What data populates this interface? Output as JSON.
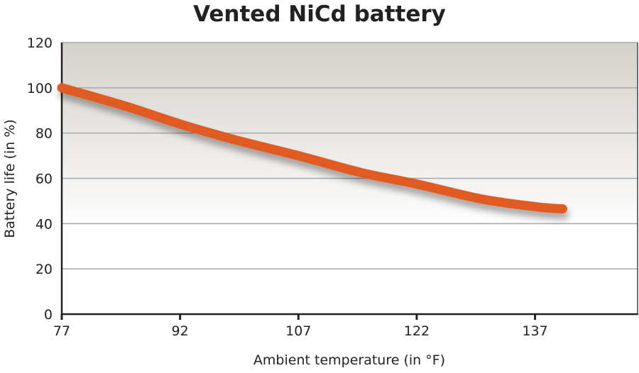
{
  "chart_data": {
    "type": "line",
    "title": "Vented NiCd battery",
    "xlabel": "Ambient temperature (in °F)",
    "ylabel": "Battery life (in %)",
    "xlim": [
      77,
      150
    ],
    "ylim": [
      0,
      120
    ],
    "xticks": [
      77,
      92,
      107,
      122,
      137
    ],
    "yticks": [
      0,
      20,
      40,
      60,
      80,
      100,
      120
    ],
    "grid": "horizontal",
    "legend": "none",
    "series": [
      {
        "color": "#e05a20",
        "x": [
          77,
          85,
          92,
          99,
          107,
          115,
          122,
          130,
          137,
          140.5
        ],
        "y": [
          100,
          92,
          84,
          77,
          70,
          62.5,
          57.5,
          51,
          47.5,
          46.5
        ]
      }
    ],
    "colors": {
      "background_top": "#d4d0ca",
      "background_bottom": "#ffffff",
      "grid": "#a8a8a8"
    }
  }
}
